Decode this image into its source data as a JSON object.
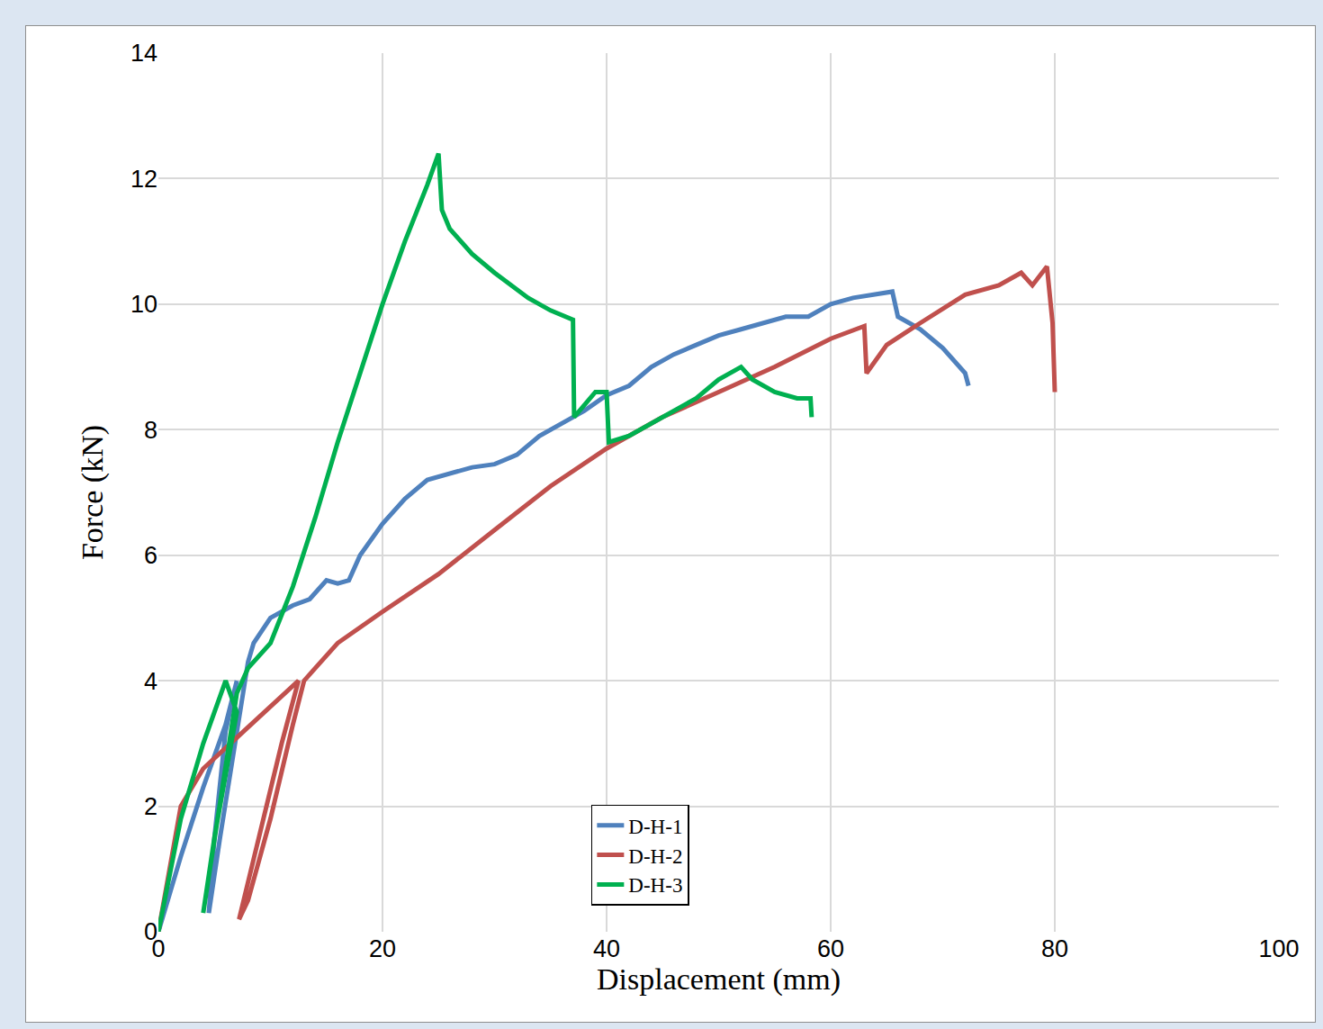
{
  "chart_data": {
    "type": "line",
    "x_label": "Displacement (mm)",
    "y_label": "Force (kN)",
    "xlim": [
      0,
      100
    ],
    "xticks": [
      0,
      20,
      40,
      60,
      80,
      100
    ],
    "ylim": [
      0,
      14
    ],
    "yticks": [
      0,
      2,
      4,
      6,
      8,
      10,
      12,
      14
    ],
    "grid": true,
    "legend": "lower center",
    "series": [
      {
        "name": "D-H-1",
        "color": "#4f81bd",
        "x": [
          0,
          2,
          4,
          6,
          7,
          6,
          5,
          4.5,
          5.5,
          7,
          8,
          8.5,
          10,
          12,
          13.5,
          15,
          16,
          17,
          18,
          20,
          22,
          24,
          26,
          28,
          30,
          32,
          34,
          36,
          38,
          40,
          42,
          44,
          46,
          48,
          50,
          52,
          54,
          56,
          58,
          60,
          62,
          64,
          65.5,
          66,
          67,
          68,
          70,
          71,
          72,
          72.3
        ],
        "values": [
          0,
          1.2,
          2.3,
          3.3,
          4,
          3.2,
          1.5,
          0.3,
          1.5,
          3.2,
          4.3,
          4.6,
          5,
          5.2,
          5.3,
          5.6,
          5.55,
          5.6,
          6,
          6.5,
          6.9,
          7.2,
          7.3,
          7.4,
          7.45,
          7.6,
          7.9,
          8.1,
          8.3,
          8.55,
          8.7,
          9,
          9.2,
          9.35,
          9.5,
          9.6,
          9.7,
          9.8,
          9.8,
          10,
          10.1,
          10.15,
          10.2,
          9.8,
          9.7,
          9.6,
          9.3,
          9.1,
          8.9,
          8.7
        ]
      },
      {
        "name": "D-H-2",
        "color": "#c0504d",
        "x": [
          0,
          2,
          4,
          7,
          10,
          12.5,
          11,
          9,
          7.2,
          8,
          10,
          12,
          13,
          14,
          16,
          20,
          25,
          30,
          35,
          40,
          45,
          50,
          55,
          60,
          63,
          63.2,
          65,
          68,
          72,
          75,
          77,
          78,
          79.3,
          79.8,
          80
        ],
        "values": [
          0,
          2,
          2.6,
          3.1,
          3.6,
          4,
          3,
          1.5,
          0.2,
          0.5,
          1.8,
          3.3,
          4,
          4.2,
          4.6,
          5.1,
          5.7,
          6.4,
          7.1,
          7.7,
          8.2,
          8.6,
          9,
          9.45,
          9.65,
          8.9,
          9.35,
          9.7,
          10.15,
          10.3,
          10.5,
          10.3,
          10.6,
          9.7,
          8.6
        ]
      },
      {
        "name": "D-H-3",
        "color": "#00b050",
        "x": [
          0,
          2,
          4,
          6,
          7,
          5,
          4,
          5,
          7,
          8,
          10,
          12,
          14,
          16,
          18,
          20,
          22,
          24,
          25,
          25.3,
          26,
          28,
          30,
          33,
          35,
          37,
          37.1,
          38,
          39,
          40,
          40.2,
          42,
          45,
          48,
          50,
          52,
          53,
          55,
          57,
          58.2,
          58.3
        ],
        "values": [
          0,
          1.8,
          3,
          4,
          3.5,
          1.5,
          0.3,
          1.5,
          3.8,
          4.2,
          4.6,
          5.5,
          6.6,
          7.8,
          8.9,
          10,
          11,
          11.9,
          12.4,
          11.5,
          11.2,
          10.8,
          10.5,
          10.1,
          9.9,
          9.75,
          8.2,
          8.4,
          8.6,
          8.6,
          7.8,
          7.9,
          8.2,
          8.5,
          8.8,
          9,
          8.8,
          8.6,
          8.5,
          8.5,
          8.2
        ]
      }
    ]
  }
}
